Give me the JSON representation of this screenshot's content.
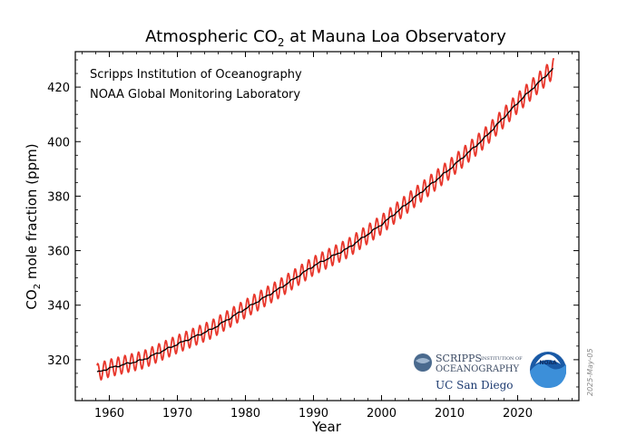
{
  "chart_data": {
    "type": "line",
    "title_main": "Atmospheric CO",
    "title_sub": "2",
    "title_rest": " at Mauna Loa Observatory",
    "xlabel": "Year",
    "ylabel_main": "CO",
    "ylabel_sub": "2",
    "ylabel_rest": " mole fraction (ppm)",
    "xlim": [
      1955,
      2029
    ],
    "ylim": [
      305,
      433
    ],
    "x_ticks": [
      1960,
      1970,
      1980,
      1990,
      2000,
      2010,
      2020
    ],
    "y_ticks": [
      320,
      340,
      360,
      380,
      400,
      420
    ],
    "grid": false,
    "series": [
      {
        "color": "#e8372c",
        "style": "monthly oscillating",
        "seasonal_amplitude_ppm": 3.2,
        "x": [
          1958.2,
          1960,
          1965,
          1970,
          1975,
          1980,
          1985,
          1990,
          1995,
          2000,
          2005,
          2010,
          2015,
          2020,
          2025.3
        ],
        "y": [
          315.3,
          316.9,
          320.0,
          325.7,
          331.1,
          338.7,
          346.1,
          354.4,
          360.8,
          369.6,
          379.8,
          389.9,
          401.0,
          414.2,
          427.0
        ]
      },
      {
        "color": "#000000",
        "style": "seasonally adjusted trend",
        "x": [
          1958.2,
          1960,
          1965,
          1970,
          1975,
          1980,
          1985,
          1990,
          1995,
          2000,
          2005,
          2010,
          2015,
          2020,
          2025.3
        ],
        "y": [
          315.3,
          316.9,
          320.0,
          325.7,
          331.1,
          338.7,
          346.1,
          354.4,
          360.8,
          369.6,
          379.8,
          389.9,
          401.0,
          414.2,
          427.0
        ]
      }
    ],
    "annotations": [
      "Scripps Institution of Oceanography",
      "NOAA Global Monitoring Laboratory"
    ],
    "logos": {
      "scripps_line1": "SCRIPPS",
      "scripps_small": "INSTITUTION OF",
      "scripps_line2": "OCEANOGRAPHY",
      "ucsd": "UC San Diego",
      "noaa": "NOAA"
    },
    "date_stamp": "2025-May-05"
  }
}
